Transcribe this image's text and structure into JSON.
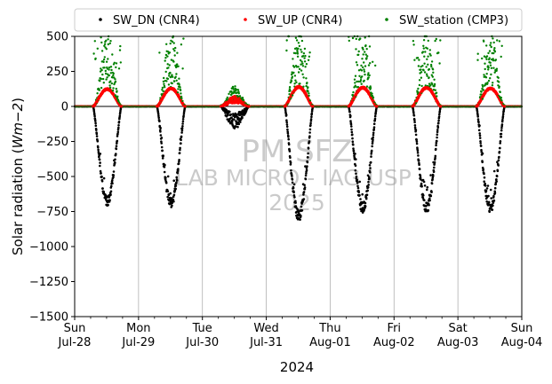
{
  "chart_data": {
    "type": "scatter",
    "title": "",
    "xlabel": "2024",
    "ylabel_prefix": "Solar radiation (",
    "ylabel_unit": "Wm−2",
    "ylabel_suffix": ")",
    "ylim": [
      -1500,
      500
    ],
    "xlim": [
      "2024-07-28 00:00",
      "2024-08-04 00:00"
    ],
    "yticks": [
      500,
      250,
      0,
      -250,
      -500,
      -750,
      -1000,
      -1250,
      -1500
    ],
    "ytick_labels": [
      "500",
      "250",
      "0",
      "−250",
      "−500",
      "−750",
      "−1000",
      "−1250",
      "−1500"
    ],
    "xticks": [
      {
        "day": "Sun",
        "date": "Jul-28"
      },
      {
        "day": "Mon",
        "date": "Jul-29"
      },
      {
        "day": "Tue",
        "date": "Jul-30"
      },
      {
        "day": "Wed",
        "date": "Jul-31"
      },
      {
        "day": "Thu",
        "date": "Aug-01"
      },
      {
        "day": "Fri",
        "date": "Aug-02"
      },
      {
        "day": "Sat",
        "date": "Aug-03"
      },
      {
        "day": "Sun",
        "date": "Aug-04"
      }
    ],
    "grid": "vertical-days",
    "legend_position": "top",
    "colors": {
      "SW_DN (CNR4)": "#000000",
      "SW_UP (CNR4)": "#ff0000",
      "SW_station (CMP3)": "#008000"
    },
    "series": [
      {
        "name": "SW_DN (CNR4)",
        "color": "#000000",
        "daily_peak_wm2": [
          -690,
          -700,
          -130,
          -800,
          -740,
          -740,
          -740
        ]
      },
      {
        "name": "SW_UP (CNR4)",
        "color": "#ff0000",
        "daily_peak_wm2": [
          125,
          130,
          60,
          140,
          135,
          135,
          130
        ]
      },
      {
        "name": "SW_station (CMP3)",
        "color": "#008000",
        "daily_peak_wm2": [
          490,
          490,
          130,
          500,
          490,
          490,
          490
        ]
      }
    ],
    "watermark": [
      "PM SFZ",
      "LAB MICRO - IAG USP",
      "2025"
    ]
  }
}
